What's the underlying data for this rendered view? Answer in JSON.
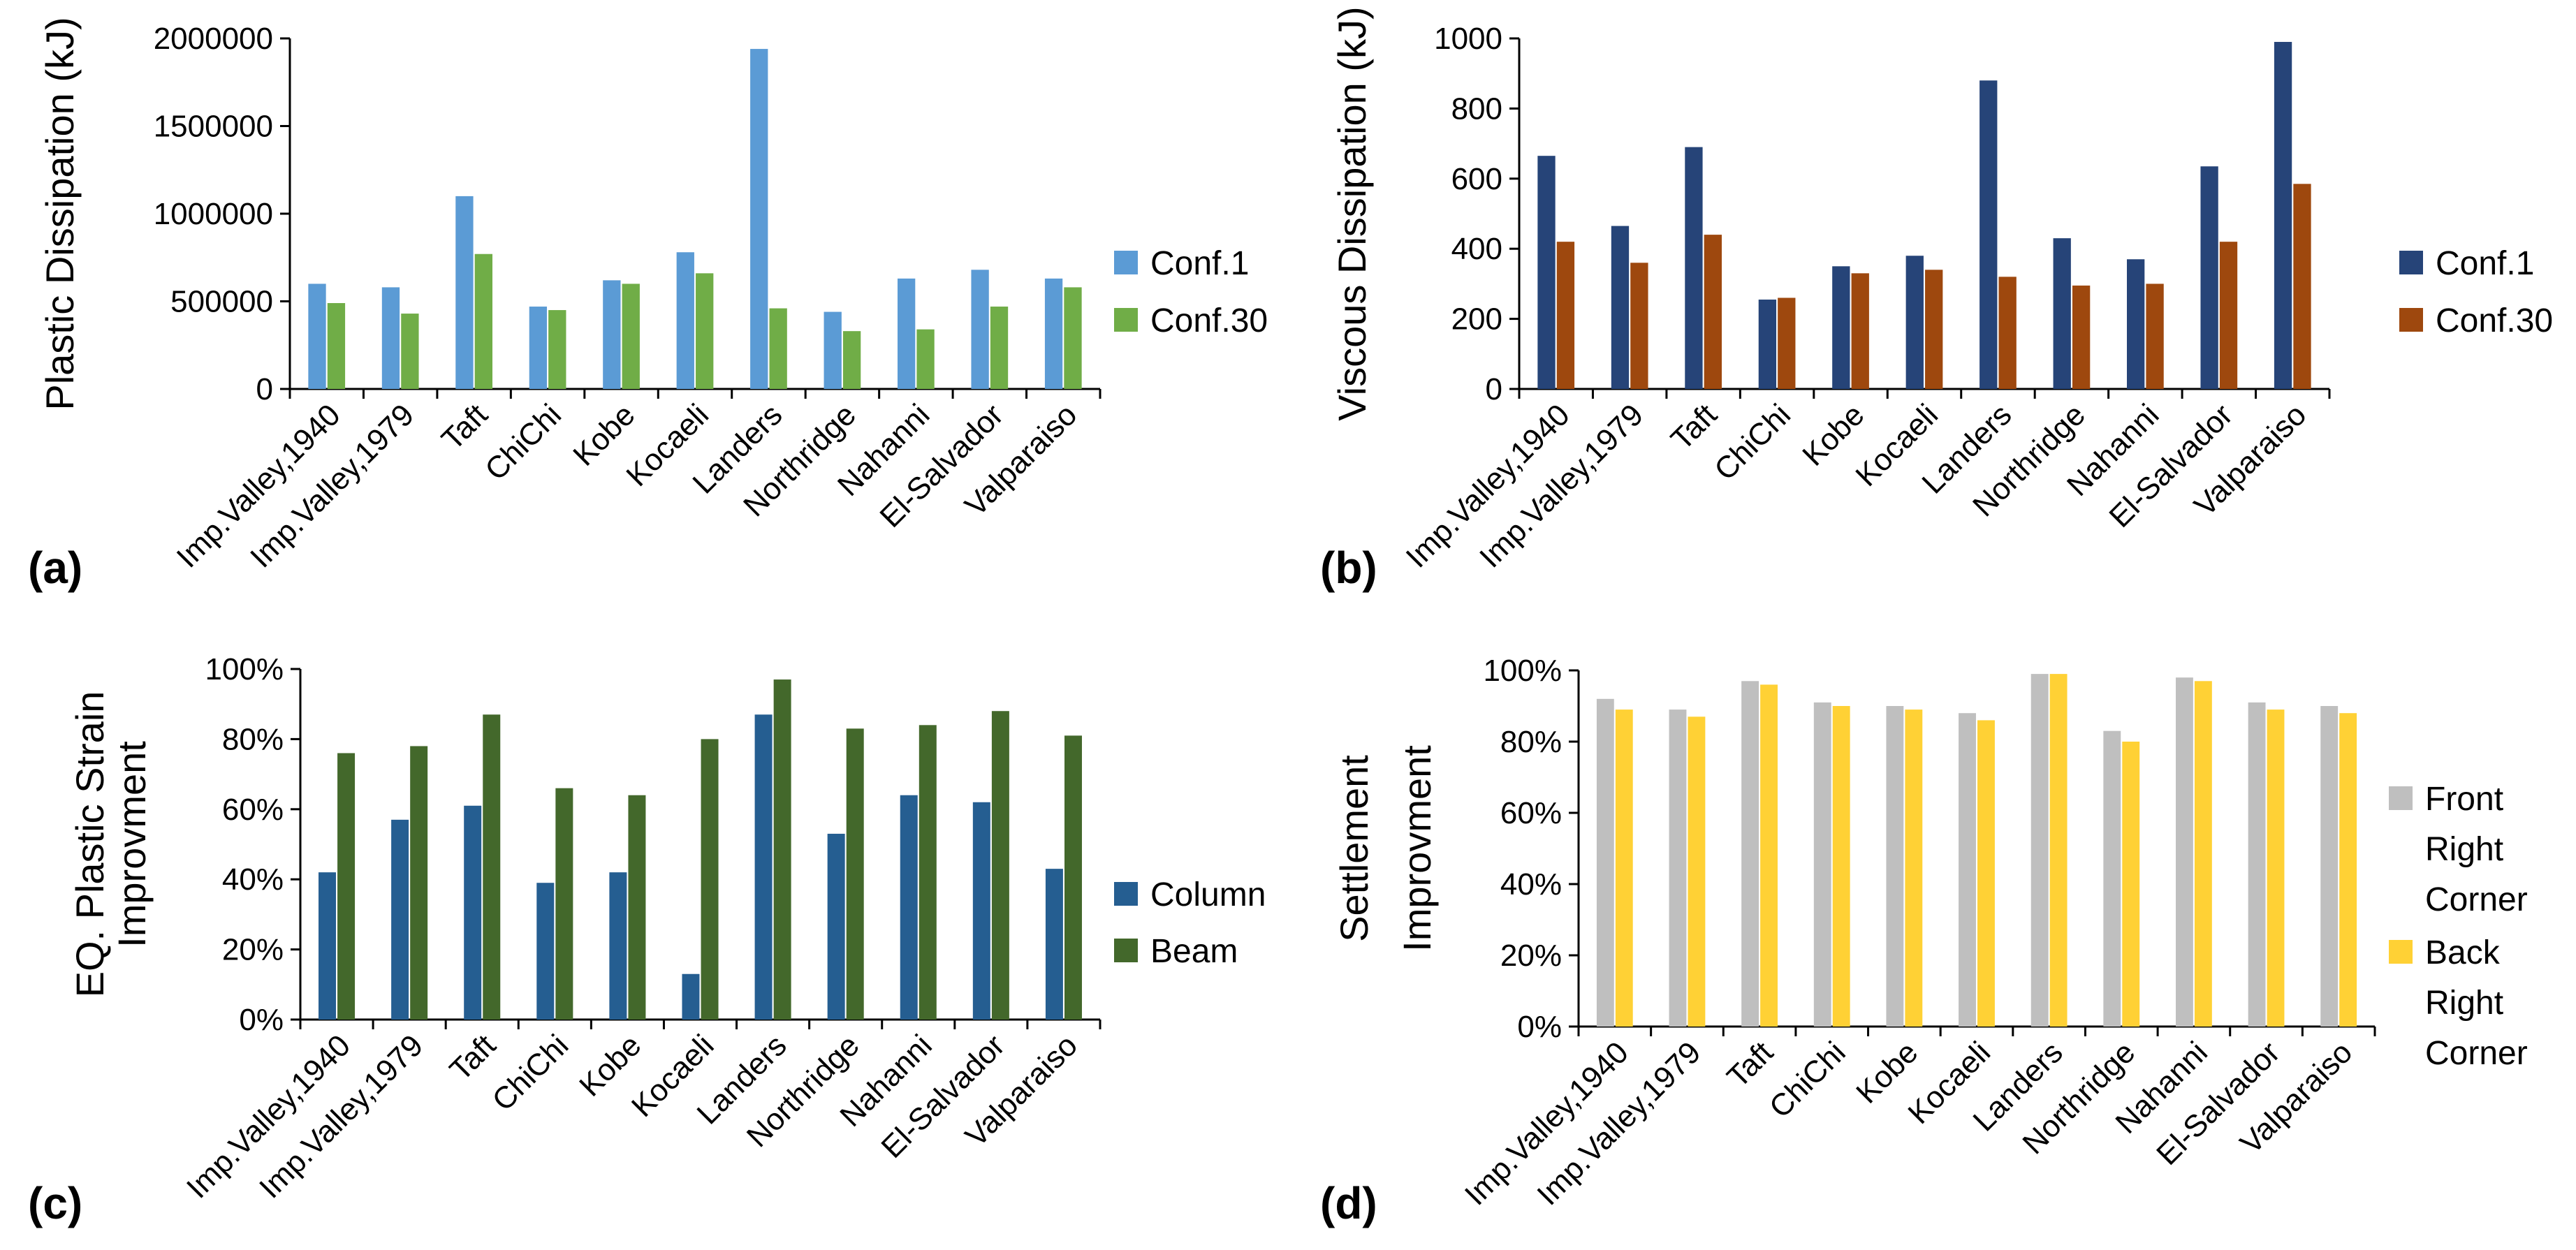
{
  "chart_data": [
    {
      "id": "a",
      "type": "bar",
      "panel_label": "(a)",
      "ylabel": "Plastic Dissipation (kJ)",
      "ylim": [
        0,
        2000000
      ],
      "yticks": [
        0,
        500000,
        1000000,
        1500000,
        2000000
      ],
      "ytick_labels": [
        "0",
        "500000",
        "1000000",
        "1500000",
        "2000000"
      ],
      "categories": [
        "Imp.Valley,1940",
        "Imp.Valley,1979",
        "Taft",
        "ChiChi",
        "Kobe",
        "Kocaeli",
        "Landers",
        "Northridge",
        "Nahanni",
        "El-Salvador",
        "Valparaiso"
      ],
      "series": [
        {
          "name": "Conf.1",
          "color": "#5B9BD5",
          "values": [
            600000,
            580000,
            1100000,
            470000,
            620000,
            780000,
            1940000,
            440000,
            630000,
            680000,
            630000
          ]
        },
        {
          "name": "Conf.30",
          "color": "#70AD47",
          "values": [
            490000,
            430000,
            770000,
            450000,
            600000,
            660000,
            460000,
            330000,
            340000,
            470000,
            580000
          ]
        }
      ],
      "legend_position": "right"
    },
    {
      "id": "b",
      "type": "bar",
      "panel_label": "(b)",
      "ylabel": "Viscous Dissipation (kJ)",
      "ylim": [
        0,
        1000
      ],
      "yticks": [
        0,
        200,
        400,
        600,
        800,
        1000
      ],
      "ytick_labels": [
        "0",
        "200",
        "400",
        "600",
        "800",
        "1000"
      ],
      "categories": [
        "Imp.Valley,1940",
        "Imp.Valley,1979",
        "Taft",
        "ChiChi",
        "Kobe",
        "Kocaeli",
        "Landers",
        "Northridge",
        "Nahanni",
        "El-Salvador",
        "Valparaiso"
      ],
      "series": [
        {
          "name": "Conf.1",
          "color": "#264478",
          "values": [
            665,
            465,
            690,
            255,
            350,
            380,
            880,
            430,
            370,
            635,
            990
          ]
        },
        {
          "name": "Conf.30",
          "color": "#9E480E",
          "values": [
            420,
            360,
            440,
            260,
            330,
            340,
            320,
            295,
            300,
            420,
            585
          ]
        }
      ],
      "legend_position": "right"
    },
    {
      "id": "c",
      "type": "bar",
      "panel_label": "(c)",
      "ylabel_lines": [
        "EQ. Plastic Strain",
        "Improvment"
      ],
      "ylim": [
        0,
        100
      ],
      "yticks": [
        0,
        20,
        40,
        60,
        80,
        100
      ],
      "ytick_labels": [
        "0%",
        "20%",
        "40%",
        "60%",
        "80%",
        "100%"
      ],
      "categories": [
        "Imp.Valley,1940",
        "Imp.Valley,1979",
        "Taft",
        "ChiChi",
        "Kobe",
        "Kocaeli",
        "Landers",
        "Northridge",
        "Nahanni",
        "El-Salvador",
        "Valparaiso"
      ],
      "series": [
        {
          "name": "Column",
          "color": "#255E91",
          "values": [
            42,
            57,
            61,
            39,
            42,
            13,
            87,
            53,
            64,
            62,
            43
          ]
        },
        {
          "name": "Beam",
          "color": "#43682B",
          "values": [
            76,
            78,
            87,
            66,
            64,
            80,
            97,
            83,
            84,
            88,
            81
          ]
        }
      ],
      "legend_position": "right"
    },
    {
      "id": "d",
      "type": "bar",
      "panel_label": "(d)",
      "ylabel_lines": [
        "Settlement",
        "Improvment"
      ],
      "ylim": [
        0,
        100
      ],
      "yticks": [
        0,
        20,
        40,
        60,
        80,
        100
      ],
      "ytick_labels": [
        "0%",
        "20%",
        "40%",
        "60%",
        "80%",
        "100%"
      ],
      "categories": [
        "Imp.Valley,1940",
        "Imp.Valley,1979",
        "Taft",
        "ChiChi",
        "Kobe",
        "Kocaeli",
        "Landers",
        "Northridge",
        "Nahanni",
        "El-Salvador",
        "Valparaiso"
      ],
      "series": [
        {
          "name": "Front Right Corner",
          "name_lines": [
            "Front",
            "Right",
            "Corner"
          ],
          "color": "#BFBFBF",
          "values": [
            92,
            89,
            97,
            91,
            90,
            88,
            99,
            83,
            98,
            91,
            90
          ]
        },
        {
          "name": "Back Right Corner",
          "name_lines": [
            "Back",
            "Right",
            "Corner"
          ],
          "color": "#FFD135",
          "values": [
            89,
            87,
            96,
            90,
            89,
            86,
            99,
            80,
            97,
            89,
            88
          ]
        }
      ],
      "legend_position": "right"
    }
  ]
}
